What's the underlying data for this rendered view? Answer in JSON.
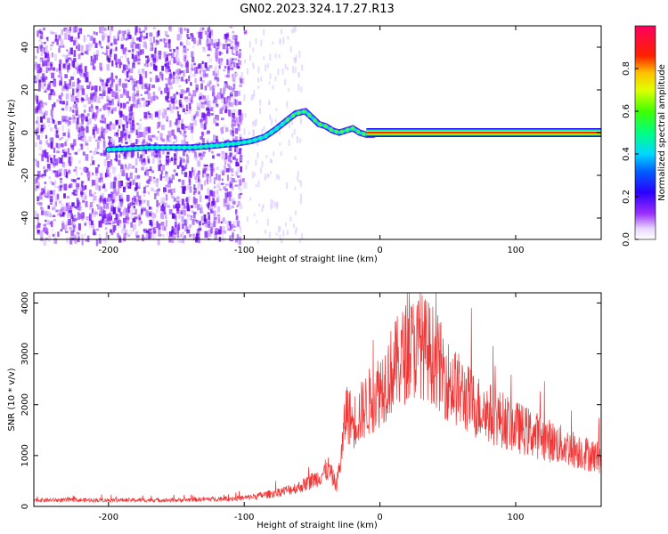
{
  "title": "GN02.2023.324.17.27.R13",
  "chart_data": [
    {
      "type": "heatmap",
      "xlabel": "Height of straight line (km)",
      "ylabel": "Frequency (Hz)",
      "xlim": [
        -255,
        163
      ],
      "ylim": [
        -50,
        50
      ],
      "xticks": [
        -200,
        -100,
        0,
        100
      ],
      "yticks": [
        40,
        20,
        0,
        -20,
        -40
      ],
      "colorbar": {
        "label": "Normalized spectral amplitude",
        "ticks": [
          "0.0",
          "0.2",
          "0.4",
          "0.6",
          "0.8"
        ],
        "range": [
          0,
          1
        ]
      },
      "ridge_x": [
        -200,
        -170,
        -140,
        -120,
        -105,
        -95,
        -85,
        -78,
        -70,
        -62,
        -55,
        -50,
        -45,
        -40,
        -35,
        -30,
        -25,
        -20,
        -15,
        -10,
        -5,
        0,
        163
      ],
      "ridge_y": [
        -8,
        -7,
        -7,
        -6,
        -5,
        -4,
        -2,
        1,
        5,
        9,
        10,
        7,
        4,
        3,
        1,
        0,
        1,
        2,
        0,
        -1,
        -1,
        0,
        0
      ]
    },
    {
      "type": "line",
      "xlabel": "Height of straight line (km)",
      "ylabel": "SNR (10 * v/v)",
      "xlim": [
        -255,
        163
      ],
      "ylim": [
        0,
        4200
      ],
      "xticks": [
        -200,
        -100,
        0,
        100
      ],
      "yticks": [
        0,
        1000,
        2000,
        3000,
        4000
      ],
      "color": "#f03535",
      "envelope_x": [
        -255,
        -150,
        -100,
        -80,
        -60,
        -45,
        -38,
        -32,
        -28,
        -25,
        -20,
        -10,
        0,
        10,
        20,
        30,
        40,
        50,
        70,
        100,
        130,
        163
      ],
      "envelope_y": [
        150,
        150,
        200,
        300,
        450,
        700,
        900,
        500,
        1300,
        2300,
        2000,
        2400,
        2800,
        3300,
        3700,
        3850,
        3600,
        3000,
        2400,
        1900,
        1500,
        1150
      ]
    }
  ]
}
